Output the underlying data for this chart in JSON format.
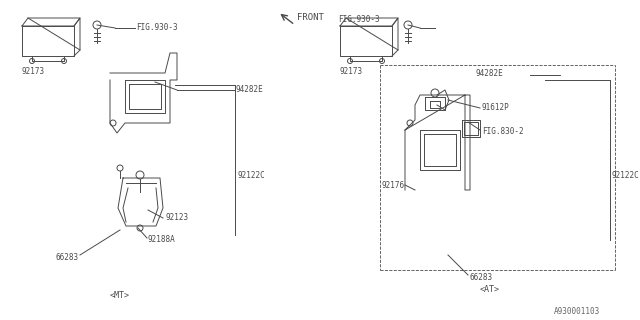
{
  "bg_color": "#ffffff",
  "lc": "#4a4a4a",
  "tc": "#4a4a4a",
  "fs": 5.5,
  "mt_label": "<MT>",
  "at_label": "<AT>",
  "front_label": "FRONT",
  "bottom_label": "A930001103",
  "parts_left": {
    "FIG930_3": "FIG.930-3",
    "94282E": "94282E",
    "92173": "92173",
    "92122C": "92122C",
    "92123": "92123",
    "66283": "66283",
    "92188A": "92188A"
  },
  "parts_right": {
    "FIG930_3": "FIG.930-3",
    "94282E": "94282E",
    "91612P": "91612P",
    "92173": "92173",
    "FIG830_2": "FIG.830-2",
    "92122C": "92122C",
    "92176": "92176",
    "66283": "66283"
  }
}
